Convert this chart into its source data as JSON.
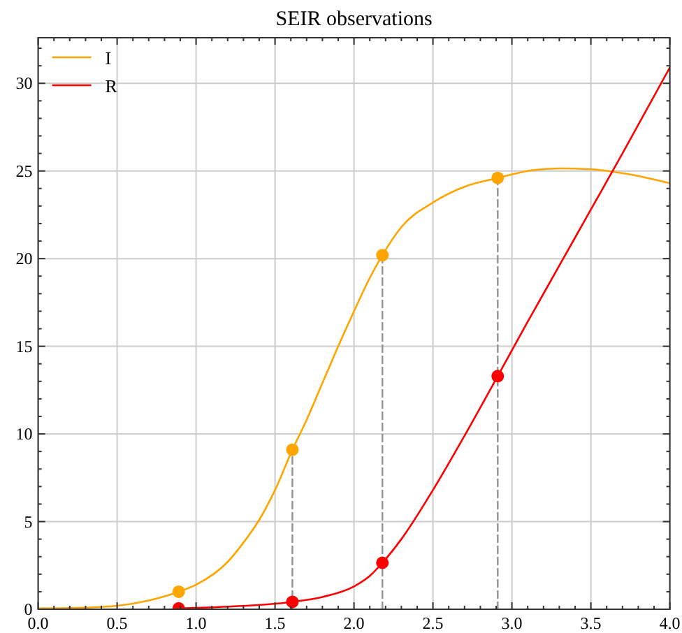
{
  "chart_data": {
    "type": "line",
    "title": "SEIR observations",
    "xlim": [
      0,
      4
    ],
    "ylim": [
      0,
      32.6
    ],
    "xticks": [
      {
        "value": 0,
        "label": "0.0"
      },
      0.5,
      {
        "value": 1,
        "label": "1.0"
      },
      1.5,
      {
        "value": 2,
        "label": "2.0"
      },
      2.5,
      {
        "value": 3,
        "label": "3.0"
      },
      3.5,
      {
        "value": 4,
        "label": "4.0"
      },
      {
        "value": 0.1,
        "label": null
      },
      {
        "value": 0.2,
        "label": null
      },
      {
        "value": 0.3,
        "label": null
      },
      {
        "value": 0.4,
        "label": null
      },
      {
        "value": 0.6,
        "label": null
      },
      {
        "value": 0.7,
        "label": null
      },
      {
        "value": 0.8,
        "label": null
      },
      {
        "value": 0.9,
        "label": null
      },
      {
        "value": 1.1,
        "label": null
      },
      {
        "value": 1.2,
        "label": null
      },
      {
        "value": 1.3,
        "label": null
      },
      {
        "value": 1.4,
        "label": null
      },
      {
        "value": 1.6,
        "label": null
      },
      {
        "value": 1.7,
        "label": null
      },
      {
        "value": 1.8,
        "label": null
      },
      {
        "value": 1.9,
        "label": null
      },
      {
        "value": 2.1,
        "label": null
      },
      {
        "value": 2.2,
        "label": null
      },
      {
        "value": 2.3,
        "label": null
      },
      {
        "value": 2.4,
        "label": null
      },
      {
        "value": 2.6,
        "label": null
      },
      {
        "value": 2.7,
        "label": null
      },
      {
        "value": 2.8,
        "label": null
      },
      {
        "value": 2.9,
        "label": null
      },
      {
        "value": 3.1,
        "label": null
      },
      {
        "value": 3.2,
        "label": null
      },
      {
        "value": 3.3,
        "label": null
      },
      {
        "value": 3.4,
        "label": null
      },
      {
        "value": 3.6,
        "label": null
      },
      {
        "value": 3.7,
        "label": null
      },
      {
        "value": 3.8,
        "label": null
      },
      {
        "value": 3.9,
        "label": null
      }
    ],
    "yticks": [
      0,
      5,
      10,
      15,
      20,
      25,
      30,
      {
        "value": 1,
        "label": null
      },
      {
        "value": 2,
        "label": null
      },
      {
        "value": 3,
        "label": null
      },
      {
        "value": 4,
        "label": null
      },
      {
        "value": 6,
        "label": null
      },
      {
        "value": 7,
        "label": null
      },
      {
        "value": 8,
        "label": null
      },
      {
        "value": 9,
        "label": null
      },
      {
        "value": 11,
        "label": null
      },
      {
        "value": 12,
        "label": null
      },
      {
        "value": 13,
        "label": null
      },
      {
        "value": 14,
        "label": null
      },
      {
        "value": 16,
        "label": null
      },
      {
        "value": 17,
        "label": null
      },
      {
        "value": 18,
        "label": null
      },
      {
        "value": 19,
        "label": null
      },
      {
        "value": 21,
        "label": null
      },
      {
        "value": 22,
        "label": null
      },
      {
        "value": 23,
        "label": null
      },
      {
        "value": 24,
        "label": null
      },
      {
        "value": 26,
        "label": null
      },
      {
        "value": 27,
        "label": null
      },
      {
        "value": 28,
        "label": null
      },
      {
        "value": 29,
        "label": null
      },
      {
        "value": 31,
        "label": null
      },
      {
        "value": 32,
        "label": null
      }
    ],
    "grid": true,
    "legend": "top left",
    "series": [
      {
        "name": "I",
        "color": "#ffa500",
        "marker": "none",
        "x": [
          0,
          0.25,
          0.5,
          0.7,
          0.89,
          1.0,
          1.2,
          1.3,
          1.4,
          1.5,
          1.61,
          1.7,
          1.8,
          1.9,
          2.0,
          2.1,
          2.18,
          2.3,
          2.5,
          2.7,
          2.91,
          3.1,
          3.3,
          3.5,
          3.75,
          4.0
        ],
        "values": [
          0.05,
          0.08,
          0.2,
          0.5,
          1.0,
          1.4,
          2.7,
          3.8,
          5.1,
          6.8,
          9.1,
          10.8,
          12.9,
          15.0,
          17.0,
          18.9,
          20.2,
          21.8,
          23.2,
          24.1,
          24.6,
          25.0,
          25.15,
          25.1,
          24.8,
          24.3
        ]
      },
      {
        "name": "R",
        "color": "#ff0000",
        "marker": "none",
        "x": [
          0.89,
          1.2,
          1.61,
          1.8,
          2.0,
          2.1,
          2.18,
          2.3,
          2.5,
          2.7,
          2.91,
          3.1,
          3.3,
          3.5,
          3.7,
          4.0
        ],
        "values": [
          0.05,
          0.15,
          0.42,
          0.7,
          1.3,
          1.9,
          2.65,
          4.0,
          6.8,
          9.9,
          13.3,
          16.4,
          19.6,
          22.8,
          26.0,
          30.9
        ]
      },
      {
        "type": "line",
        "color": "#999999",
        "line_style": "dashed",
        "marker": "none",
        "x": [
          1.61,
          1.61
        ],
        "values": [
          0,
          9.1
        ]
      },
      {
        "type": "line",
        "color": "#999999",
        "line_style": "dashed",
        "marker": "none",
        "x": [
          2.18,
          2.18
        ],
        "values": [
          0,
          20.2
        ]
      },
      {
        "type": "line",
        "color": "#999999",
        "line_style": "dashed",
        "marker": "none",
        "x": [
          2.91,
          2.91
        ],
        "values": [
          0,
          24.6
        ]
      },
      {
        "type": "scatter",
        "color": "#ffa500",
        "marker": "circle",
        "x": [
          0.89,
          1.61,
          2.18,
          2.91
        ],
        "values": [
          1.0,
          9.1,
          20.2,
          24.6
        ]
      },
      {
        "type": "scatter",
        "color": "#ff0000",
        "marker": "circle",
        "x": [
          0.89,
          1.61,
          2.18,
          2.91
        ],
        "values": [
          0.05,
          0.42,
          2.65,
          13.3
        ]
      }
    ]
  }
}
